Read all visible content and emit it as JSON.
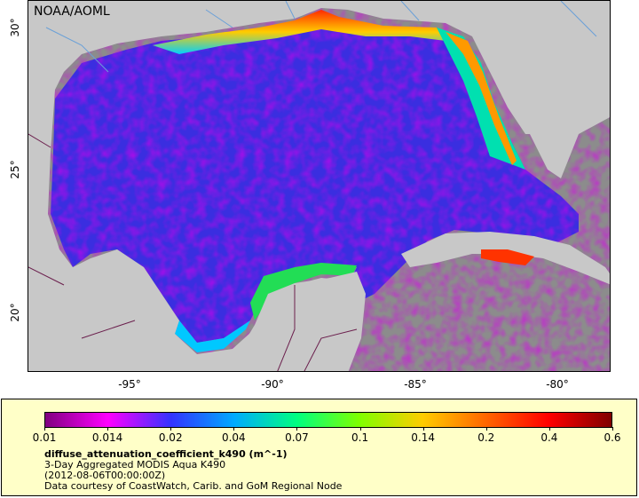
{
  "map": {
    "org_label": "NOAA/AOML",
    "lat_ticks": [
      "30°",
      "25°",
      "20°"
    ],
    "lon_ticks": [
      "-95°",
      "-90°",
      "-85°",
      "-80°"
    ]
  },
  "legend": {
    "colorbar_ticks": [
      "0.01",
      "0.014",
      "0.02",
      "0.04",
      "0.07",
      "0.1",
      "0.14",
      "0.2",
      "0.4",
      "0.6"
    ],
    "variable": "diffuse_attenuation_coefficient_k490 (m^-1)",
    "product": "3-Day Aggregated MODIS Aqua K490",
    "time": "(2012-08-06T00:00:00Z)",
    "credit": "Data courtesy of CoastWatch, Carib. and GoM Regional Node"
  },
  "colors": {
    "land": "#c8c8c8",
    "nodata": "#8c8c8c",
    "panel": "#ffffc8",
    "colormap": [
      "#800080",
      "#ff00ff",
      "#3333ff",
      "#00aaff",
      "#00ff80",
      "#80ff00",
      "#ffcc00",
      "#ff6600",
      "#ff0000",
      "#800000"
    ]
  }
}
